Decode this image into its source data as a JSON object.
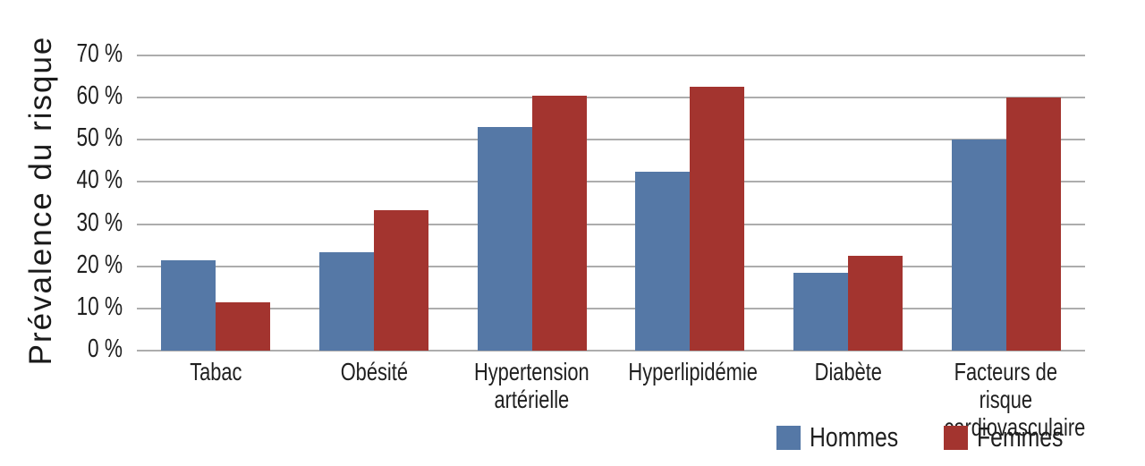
{
  "chart_data": {
    "type": "bar",
    "title": "",
    "xlabel": "",
    "ylabel": "Prévalence du risque",
    "ylim": [
      0,
      70
    ],
    "ytick_step": 10,
    "yticks": [
      "0 %",
      "10 %",
      "20 %",
      "30 %",
      "40 %",
      "50 %",
      "60 %",
      "70 %"
    ],
    "grid": true,
    "legend_position": "bottom-right",
    "categories": [
      "Tabac",
      "Obésité",
      "Hypertension\nartérielle",
      "Hyperlipidémie",
      "Diabète",
      "Facteurs de risque\ncardiovasculaire"
    ],
    "series": [
      {
        "name": "Hommes",
        "color": "#5578A6",
        "values": [
          21.5,
          23.3,
          53.0,
          42.5,
          18.4,
          50.0
        ]
      },
      {
        "name": "Femmes",
        "color": "#A3342F",
        "values": [
          11.5,
          33.4,
          60.5,
          62.5,
          22.5,
          60.0
        ]
      }
    ]
  },
  "colors": {
    "gridline": "#ADADAD",
    "background": "#FFFFFF",
    "text": "#1F1F1F"
  }
}
